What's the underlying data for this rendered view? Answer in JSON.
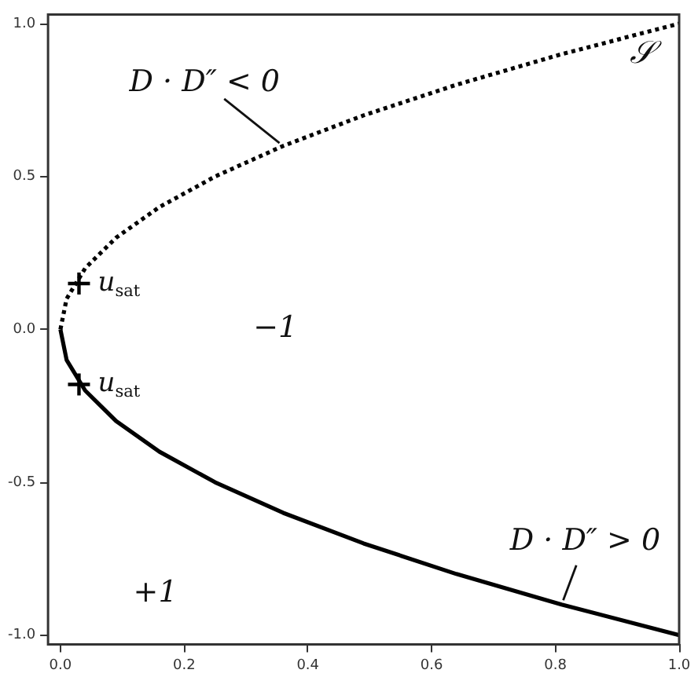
{
  "chart_data": {
    "type": "line",
    "legend": false,
    "grid": false,
    "xlim": [
      -0.02,
      1.0
    ],
    "ylim": [
      -1.03,
      1.03
    ],
    "xticks": [
      {
        "value": 0,
        "label": "0.0"
      },
      {
        "value": 0.2,
        "label": "0.2"
      },
      {
        "value": 0.4,
        "label": "0.4"
      },
      {
        "value": 0.6,
        "label": "0.6"
      },
      {
        "value": 0.8,
        "label": "0.8"
      },
      {
        "value": 1,
        "label": "1.0"
      }
    ],
    "yticks": [
      {
        "value": -1,
        "label": "-1.0"
      },
      {
        "value": -0.5,
        "label": "-0.5"
      },
      {
        "value": 0,
        "label": "0.0"
      },
      {
        "value": 0.5,
        "label": "0.5"
      },
      {
        "value": 1,
        "label": "1.0"
      }
    ],
    "series": [
      {
        "name": "𝒮",
        "line_style": "dotted",
        "marker": "none",
        "color": "#000000",
        "x": [
          0,
          0.01,
          0.04,
          0.09,
          0.16,
          0.25,
          0.36,
          0.49,
          0.64,
          0.81,
          1.0
        ],
        "values": [
          0,
          0.1,
          0.2,
          0.3,
          0.4,
          0.5,
          0.6,
          0.7,
          0.8,
          0.9,
          1.0
        ]
      },
      {
        "line_style": "solid",
        "marker": "none",
        "color": "#000000",
        "x": [
          0,
          0.01,
          0.04,
          0.09,
          0.16,
          0.25,
          0.36,
          0.49,
          0.64,
          0.81,
          1.0
        ],
        "values": [
          0,
          -0.1,
          -0.2,
          -0.3,
          -0.4,
          -0.5,
          -0.6,
          -0.7,
          -0.8,
          -0.9,
          -1.0
        ]
      },
      {
        "name": "u$_{sat}$",
        "type": "scatter",
        "marker": "cross",
        "color": "#000000",
        "x": [
          0.03,
          0.03
        ],
        "values": [
          0.15,
          -0.18
        ]
      }
    ],
    "annotations": [
      {
        "text": "D · D″ < 0",
        "x": 0.36,
        "y": 0.6
      },
      "−1",
      "+1",
      {
        "text": "D · D″ > 0",
        "x": 0.81,
        "y": -0.9
      }
    ]
  }
}
